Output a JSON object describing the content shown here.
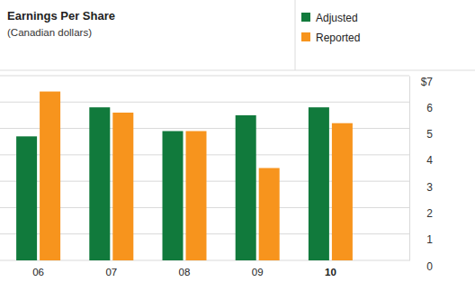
{
  "chart_data": {
    "type": "bar",
    "title": "Earnings Per Share",
    "subtitle": "(Canadian dollars)",
    "categories": [
      "06",
      "07",
      "08",
      "09",
      "10"
    ],
    "series": [
      {
        "name": "Adjusted",
        "color": "#117a3c",
        "values": [
          4.7,
          5.8,
          4.9,
          5.5,
          5.8
        ]
      },
      {
        "name": "Reported",
        "color": "#f7941d",
        "values": [
          6.4,
          5.6,
          4.9,
          3.5,
          5.2
        ]
      }
    ],
    "ylim": [
      0,
      7
    ],
    "yticks": [
      0,
      1,
      2,
      3,
      4,
      5,
      6,
      {
        "value": 7,
        "label": "$7"
      }
    ],
    "grid": true,
    "legend": "top-right"
  }
}
